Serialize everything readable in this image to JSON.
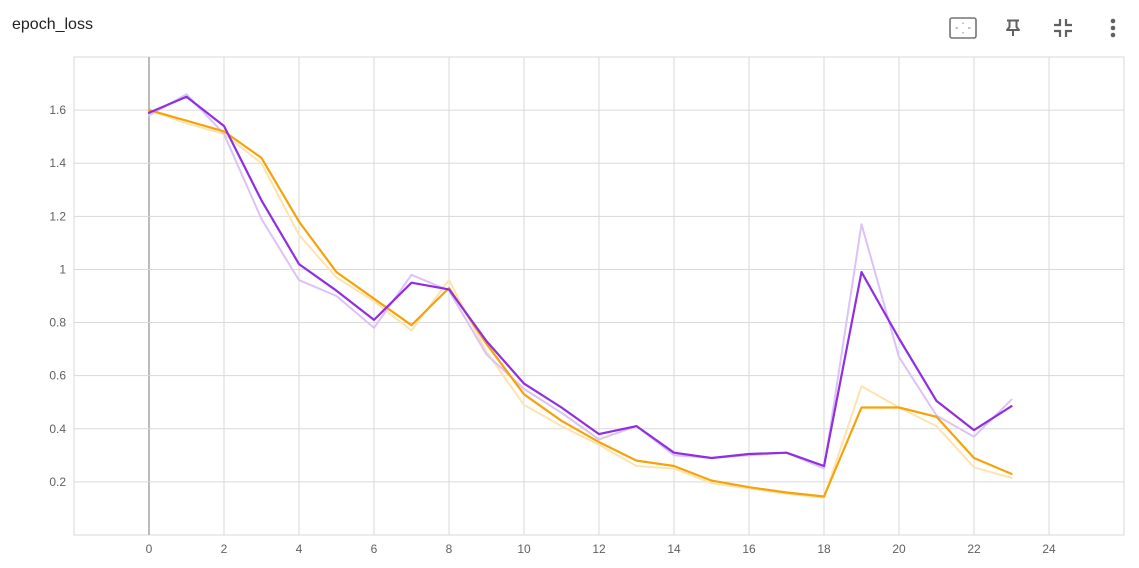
{
  "header": {
    "title": "epoch_loss"
  },
  "toolbar": {
    "icons": [
      "fit-domain-icon",
      "pin-icon",
      "collapse-icon",
      "more-vert-icon"
    ]
  },
  "colors": {
    "orange": "#f5a30a",
    "orange_raw": "#fde3b0",
    "purple": "#8e2fe0",
    "purple_raw": "#dcc2f7",
    "grid": "#dadada",
    "axis_zero": "#9e9e9e"
  },
  "chart_data": {
    "type": "line",
    "title": "epoch_loss",
    "xlabel": "",
    "ylabel": "",
    "xlim": [
      -2,
      26
    ],
    "ylim": [
      0,
      1.8
    ],
    "x_ticks": [
      0,
      2,
      4,
      6,
      8,
      10,
      12,
      14,
      16,
      18,
      20,
      22,
      24
    ],
    "y_ticks": [
      0.2,
      0.4,
      0.6,
      0.8,
      1,
      1.2,
      1.4,
      1.6
    ],
    "x_tick_labels": [
      "0",
      "2",
      "4",
      "6",
      "8",
      "10",
      "12",
      "14",
      "16",
      "18",
      "20",
      "22",
      "24"
    ],
    "y_tick_labels": [
      "0.2",
      "0.4",
      "0.6",
      "0.8",
      "1",
      "1.2",
      "1.4",
      "1.6"
    ],
    "grid": true,
    "x": [
      0,
      1,
      2,
      3,
      4,
      5,
      6,
      7,
      8,
      9,
      10,
      11,
      12,
      13,
      14,
      15,
      16,
      17,
      18,
      19,
      20,
      21,
      22,
      23
    ],
    "series": [
      {
        "color": "#f5a30a",
        "raw_color": "#fde3b0",
        "smoothed": [
          1.6,
          1.56,
          1.52,
          1.42,
          1.18,
          0.99,
          0.89,
          0.79,
          0.93,
          0.72,
          0.53,
          0.43,
          0.35,
          0.28,
          0.26,
          0.205,
          0.18,
          0.16,
          0.145,
          0.48,
          0.48,
          0.445,
          0.29,
          0.23
        ],
        "raw": [
          1.6,
          1.55,
          1.51,
          1.4,
          1.13,
          0.97,
          0.88,
          0.77,
          0.96,
          0.69,
          0.49,
          0.41,
          0.34,
          0.26,
          0.25,
          0.195,
          0.175,
          0.155,
          0.14,
          0.56,
          0.48,
          0.41,
          0.255,
          0.215
        ]
      },
      {
        "color": "#8e2fe0",
        "raw_color": "#dcc2f7",
        "smoothed": [
          1.59,
          1.65,
          1.54,
          1.26,
          1.02,
          0.92,
          0.81,
          0.95,
          0.925,
          0.73,
          0.57,
          0.48,
          0.38,
          0.41,
          0.31,
          0.29,
          0.305,
          0.31,
          0.26,
          0.99,
          0.74,
          0.505,
          0.395,
          0.485
        ],
        "raw": [
          1.58,
          1.66,
          1.51,
          1.19,
          0.96,
          0.9,
          0.78,
          0.98,
          0.92,
          0.68,
          0.55,
          0.46,
          0.36,
          0.41,
          0.3,
          0.29,
          0.3,
          0.31,
          0.25,
          1.17,
          0.67,
          0.45,
          0.37,
          0.51
        ]
      }
    ]
  }
}
